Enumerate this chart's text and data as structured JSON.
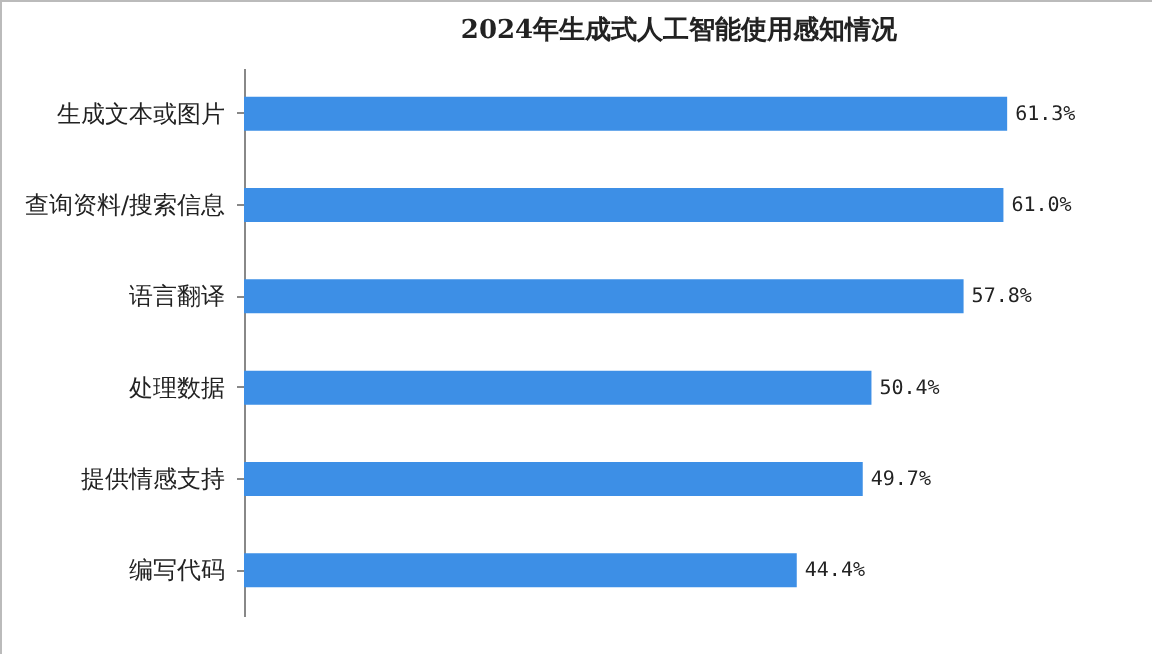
{
  "chart_data": {
    "type": "bar",
    "orientation": "horizontal",
    "title": "2024年生成式人工智能使用感知情况",
    "categories": [
      "生成文本或图片",
      "查询资料/搜索信息",
      "语言翻译",
      "处理数据",
      "提供情感支持",
      "编写代码"
    ],
    "values": [
      61.3,
      61.0,
      57.8,
      50.4,
      49.7,
      44.4
    ],
    "value_labels": [
      "61.3%",
      "61.0%",
      "57.8%",
      "50.4%",
      "49.7%",
      "44.4%"
    ],
    "color": "#3d8fe6"
  }
}
